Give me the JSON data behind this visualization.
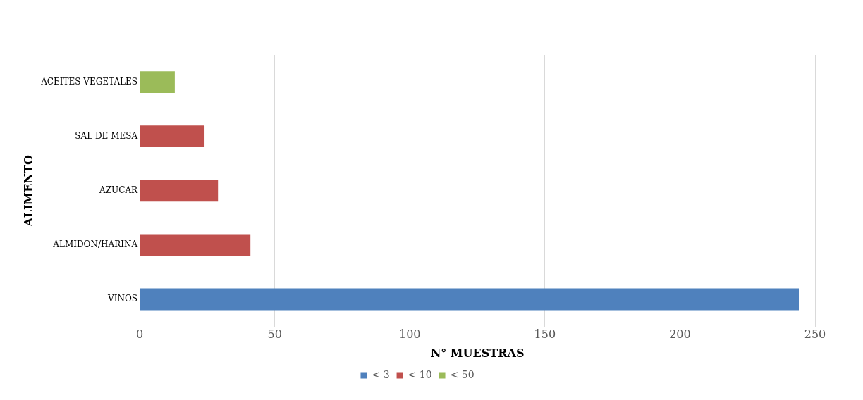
{
  "chart_data": {
    "type": "bar",
    "orientation": "horizontal",
    "stacked": true,
    "xlabel": "N° MUESTRAS",
    "ylabel": "ALIMENTO",
    "categories": [
      "ACEITES VEGETALES",
      "SAL DE MESA",
      "AZUCAR",
      "ALMIDON/HARINA",
      "VINOS"
    ],
    "series": [
      {
        "name": "< 3",
        "color": "#4f81bd",
        "values": [
          null,
          null,
          null,
          null,
          244
        ]
      },
      {
        "name": "< 10",
        "color": "#c0504d",
        "values": [
          null,
          24,
          29,
          41,
          null
        ]
      },
      {
        "name": "< 50",
        "color": "#9bbb59",
        "values": [
          13,
          null,
          null,
          null,
          null
        ]
      }
    ],
    "xlim": [
      0,
      250
    ],
    "xticks": [
      0,
      50,
      100,
      150,
      200,
      250
    ],
    "grid": "x",
    "legend": "bottom"
  }
}
